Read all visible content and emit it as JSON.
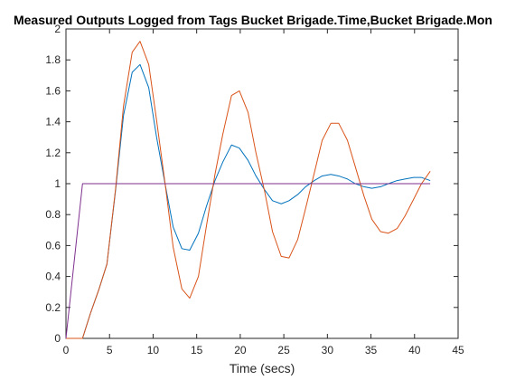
{
  "chart_data": {
    "type": "line",
    "title": "Measured Outputs Logged from Tags Bucket Brigade.Time,Bucket Brigade.Mon",
    "xlabel": "Time (secs)",
    "ylabel": "",
    "xlim": [
      0,
      45
    ],
    "ylim": [
      0,
      2
    ],
    "xticks": [
      0,
      5,
      10,
      15,
      20,
      25,
      30,
      35,
      40,
      45
    ],
    "yticks": [
      0,
      0.2,
      0.4,
      0.6,
      0.8,
      1,
      1.2,
      1.4,
      1.6,
      1.8,
      2
    ],
    "xtick_labels": [
      "0",
      "5",
      "10",
      "15",
      "20",
      "25",
      "30",
      "35",
      "40",
      "45"
    ],
    "ytick_labels": [
      "0",
      "0.2",
      "0.4",
      "0.6",
      "0.8",
      "1",
      "1.2",
      "1.4",
      "1.6",
      "1.8",
      "2"
    ],
    "grid": false,
    "legend": "none",
    "series": [
      {
        "color": "#0072BD",
        "x": [
          0,
          1.9,
          2.8,
          3.8,
          4.7,
          5.7,
          6.6,
          7.6,
          8.5,
          9.5,
          10.4,
          11.4,
          12.3,
          13.3,
          14.2,
          15.2,
          16.1,
          17.1,
          18.0,
          19.0,
          19.9,
          20.9,
          21.8,
          22.8,
          23.7,
          24.7,
          25.6,
          26.6,
          27.5,
          28.5,
          29.4,
          30.4,
          31.3,
          32.3,
          33.2,
          34.2,
          35.1,
          36.1,
          37.0,
          38.0,
          38.9,
          39.9,
          40.8,
          41.8
        ],
        "y": [
          0,
          0,
          0.16,
          0.32,
          0.48,
          0.96,
          1.44,
          1.72,
          1.77,
          1.62,
          1.3,
          0.99,
          0.72,
          0.58,
          0.57,
          0.68,
          0.85,
          1.02,
          1.14,
          1.25,
          1.23,
          1.15,
          1.05,
          0.96,
          0.89,
          0.87,
          0.89,
          0.93,
          0.98,
          1.02,
          1.05,
          1.06,
          1.05,
          1.03,
          1.0,
          0.98,
          0.97,
          0.98,
          1.0,
          1.02,
          1.03,
          1.04,
          1.04,
          1.02
        ]
      },
      {
        "color": "#D95319",
        "x": [
          0,
          1.9,
          2.8,
          3.8,
          4.7,
          5.7,
          6.6,
          7.6,
          8.5,
          9.5,
          10.4,
          11.4,
          12.3,
          13.3,
          14.2,
          15.2,
          16.1,
          17.1,
          18.0,
          19.0,
          19.9,
          20.9,
          21.8,
          22.8,
          23.7,
          24.7,
          25.6,
          26.6,
          27.5,
          28.5,
          29.4,
          30.4,
          31.3,
          32.3,
          33.2,
          34.2,
          35.1,
          36.1,
          37.0,
          38.0,
          38.9,
          39.9,
          40.8,
          41.8
        ],
        "y": [
          0,
          0,
          0.16,
          0.32,
          0.48,
          0.97,
          1.5,
          1.85,
          1.92,
          1.77,
          1.41,
          0.99,
          0.59,
          0.32,
          0.26,
          0.4,
          0.72,
          1.06,
          1.32,
          1.57,
          1.6,
          1.46,
          1.2,
          0.95,
          0.69,
          0.53,
          0.52,
          0.64,
          0.84,
          1.07,
          1.28,
          1.39,
          1.39,
          1.28,
          1.11,
          0.92,
          0.77,
          0.69,
          0.68,
          0.71,
          0.79,
          0.9,
          1.0,
          1.08
        ]
      },
      {
        "color": "#7E2F8E",
        "x": [
          0,
          1.9,
          41.8
        ],
        "y": [
          0,
          1,
          1
        ]
      }
    ]
  }
}
